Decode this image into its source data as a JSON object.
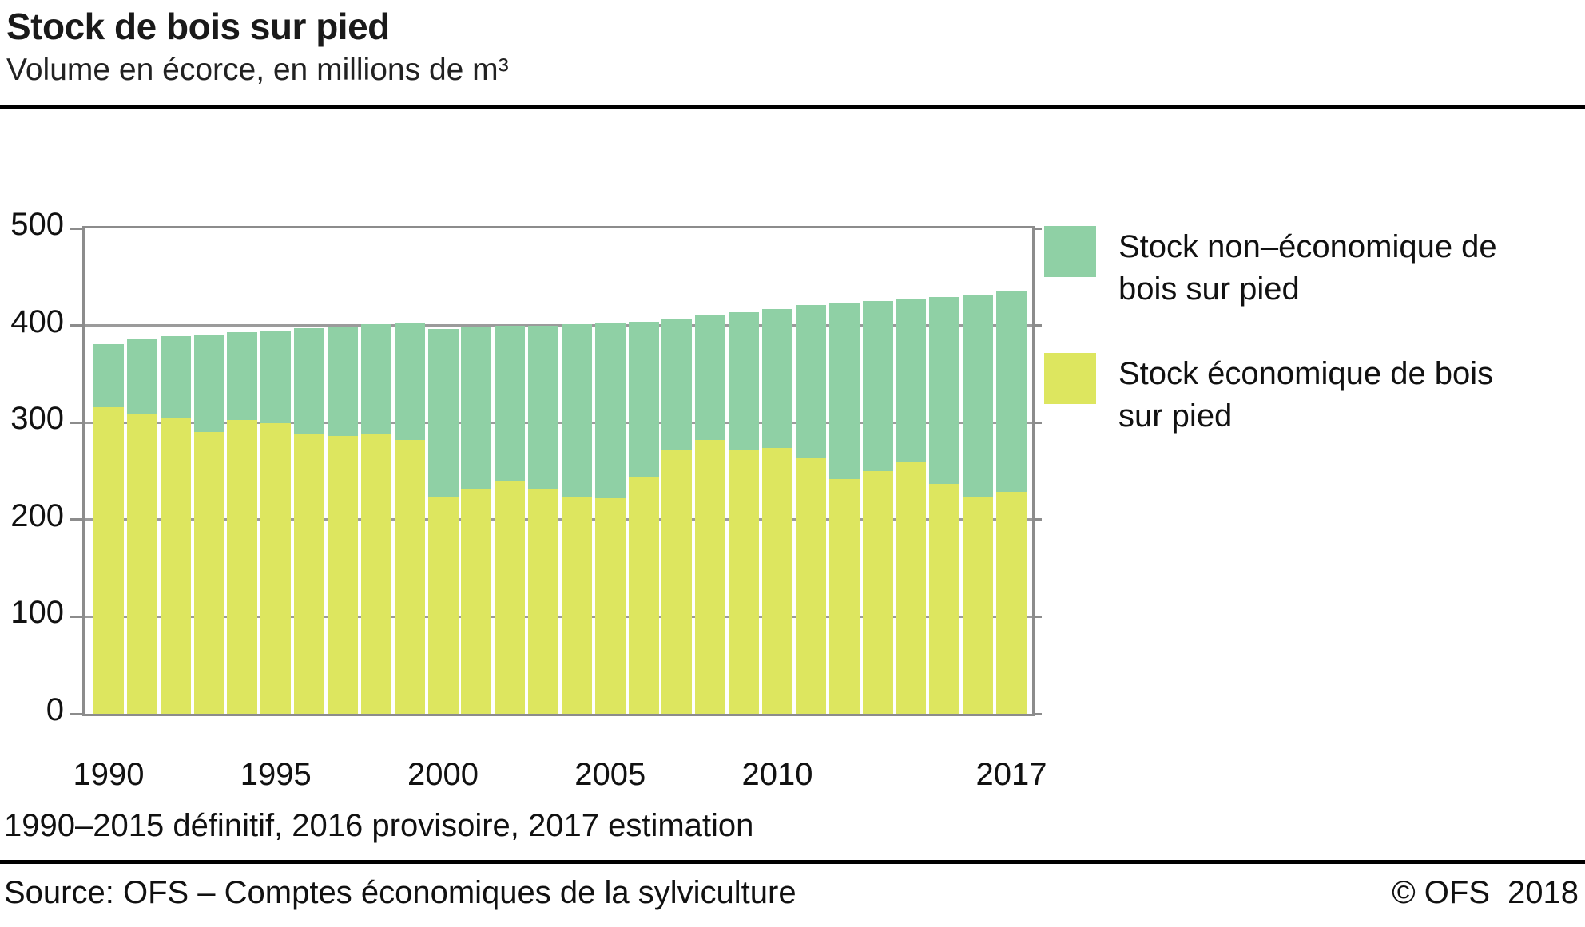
{
  "header": {
    "title": "Stock de bois sur pied",
    "subtitle": "Volume en écorce, en millions de m³"
  },
  "footer": {
    "footnote": "1990–2015 définitif, 2016 provisoire, 2017 estimation",
    "source": "Source: OFS – Comptes économiques de la sylviculture",
    "copyright_sign_org": "© OFS",
    "copyright_year": "2018"
  },
  "colors": {
    "economic": "#dde65f",
    "non_economic": "#8fd0a5",
    "axis": "#8c8c8c",
    "gridline": "#9b9b9b",
    "rule": "#000000"
  },
  "legend": {
    "items": [
      {
        "key": "non_economic",
        "lines": [
          "Stock non–économique de",
          "bois sur pied"
        ],
        "color": "#8fd0a5"
      },
      {
        "key": "economic",
        "lines": [
          "Stock économique de bois",
          "sur pied"
        ],
        "color": "#dde65f"
      }
    ]
  },
  "chart_data": {
    "type": "bar",
    "stacked": true,
    "title": "Stock de bois sur pied",
    "subtitle": "Volume en écorce, en millions de m³",
    "xlabel": "",
    "ylabel": "Volume en écorce, en millions de m³",
    "ylim": [
      0,
      500
    ],
    "yticks": [
      0,
      100,
      200,
      300,
      400,
      500
    ],
    "grid": true,
    "legend_position": "right",
    "categories": [
      1990,
      1991,
      1992,
      1993,
      1994,
      1995,
      1996,
      1997,
      1998,
      1999,
      2000,
      2001,
      2002,
      2003,
      2004,
      2005,
      2006,
      2007,
      2008,
      2009,
      2010,
      2011,
      2012,
      2013,
      2014,
      2015,
      2016,
      2017
    ],
    "x_tick_labels_shown": [
      1990,
      1995,
      2000,
      2005,
      2010,
      2017
    ],
    "series": [
      {
        "name": "Stock économique de bois sur pied",
        "color": "#dde65f",
        "values": [
          316,
          308,
          305,
          290,
          303,
          299,
          288,
          286,
          289,
          282,
          224,
          232,
          239,
          232,
          223,
          222,
          244,
          272,
          282,
          272,
          274,
          263,
          242,
          250,
          259,
          237,
          224,
          229
        ]
      },
      {
        "name": "Stock non–économique de bois sur pied",
        "color": "#8fd0a5",
        "values": [
          65,
          78,
          84,
          101,
          90,
          96,
          109,
          113,
          112,
          121,
          172,
          166,
          161,
          168,
          178,
          180,
          160,
          135,
          128,
          142,
          143,
          158,
          181,
          175,
          168,
          192,
          208,
          206
        ]
      }
    ],
    "totals": [
      381,
      386,
      389,
      391,
      393,
      395,
      397,
      399,
      401,
      403,
      396,
      398,
      400,
      400,
      401,
      402,
      404,
      407,
      410,
      414,
      417,
      421,
      423,
      425,
      427,
      429,
      432,
      435
    ]
  }
}
